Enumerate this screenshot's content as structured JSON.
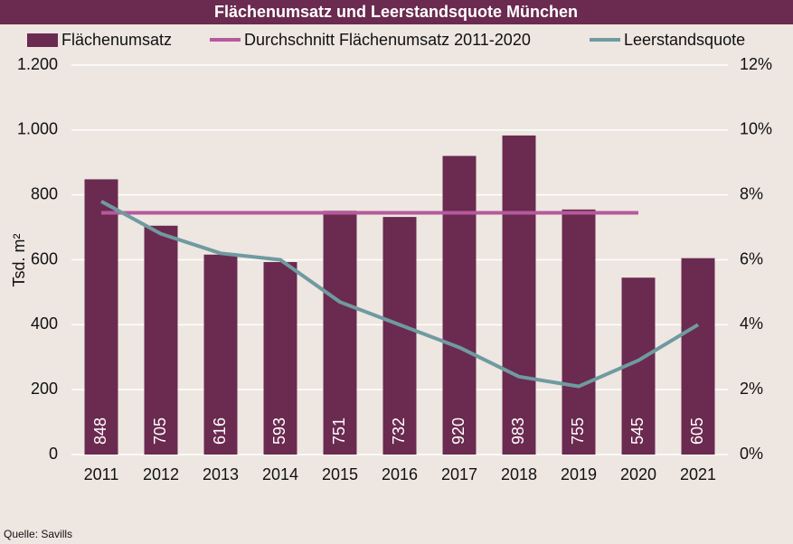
{
  "chart_data": {
    "type": "bar",
    "title": "Flächenumsatz und Leerstandsquote München",
    "y_label": "Tsd. m²",
    "source": "Quelle: Savills",
    "categories": [
      "2011",
      "2012",
      "2013",
      "2014",
      "2015",
      "2016",
      "2017",
      "2018",
      "2019",
      "2020",
      "2021"
    ],
    "series": [
      {
        "name": "Flächenumsatz",
        "type": "bar",
        "color": "#6b2a4f",
        "values": [
          848,
          705,
          616,
          593,
          751,
          732,
          920,
          983,
          755,
          545,
          605
        ]
      },
      {
        "name": "Durchschnitt Flächenumsatz 2011-2020",
        "type": "line",
        "color": "#b55a9c",
        "values": [
          744.8,
          744.8,
          744.8,
          744.8,
          744.8,
          744.8,
          744.8,
          744.8,
          744.8,
          744.8,
          null
        ]
      },
      {
        "name": "Leerstandsquote",
        "type": "line",
        "axis": "y2",
        "color": "#6f9aa0",
        "values": [
          7.8,
          6.8,
          6.2,
          6.0,
          4.7,
          4.0,
          3.3,
          2.4,
          2.1,
          2.9,
          4.0
        ]
      }
    ],
    "ylim": [
      0,
      1200
    ],
    "yticks": [
      0,
      200,
      400,
      600,
      800,
      {
        "value": 1000,
        "label": "1.000"
      },
      {
        "value": 1200,
        "label": "1.200"
      }
    ],
    "y2lim": [
      0,
      12
    ],
    "y2ticks": [
      {
        "value": 0,
        "label": "0%"
      },
      {
        "value": 2,
        "label": "2%"
      },
      {
        "value": 4,
        "label": "4%"
      },
      {
        "value": 6,
        "label": "6%"
      },
      {
        "value": 8,
        "label": "8%"
      },
      {
        "value": 10,
        "label": "10%"
      },
      {
        "value": 12,
        "label": "12%"
      }
    ],
    "grid": true,
    "legend": "top"
  }
}
